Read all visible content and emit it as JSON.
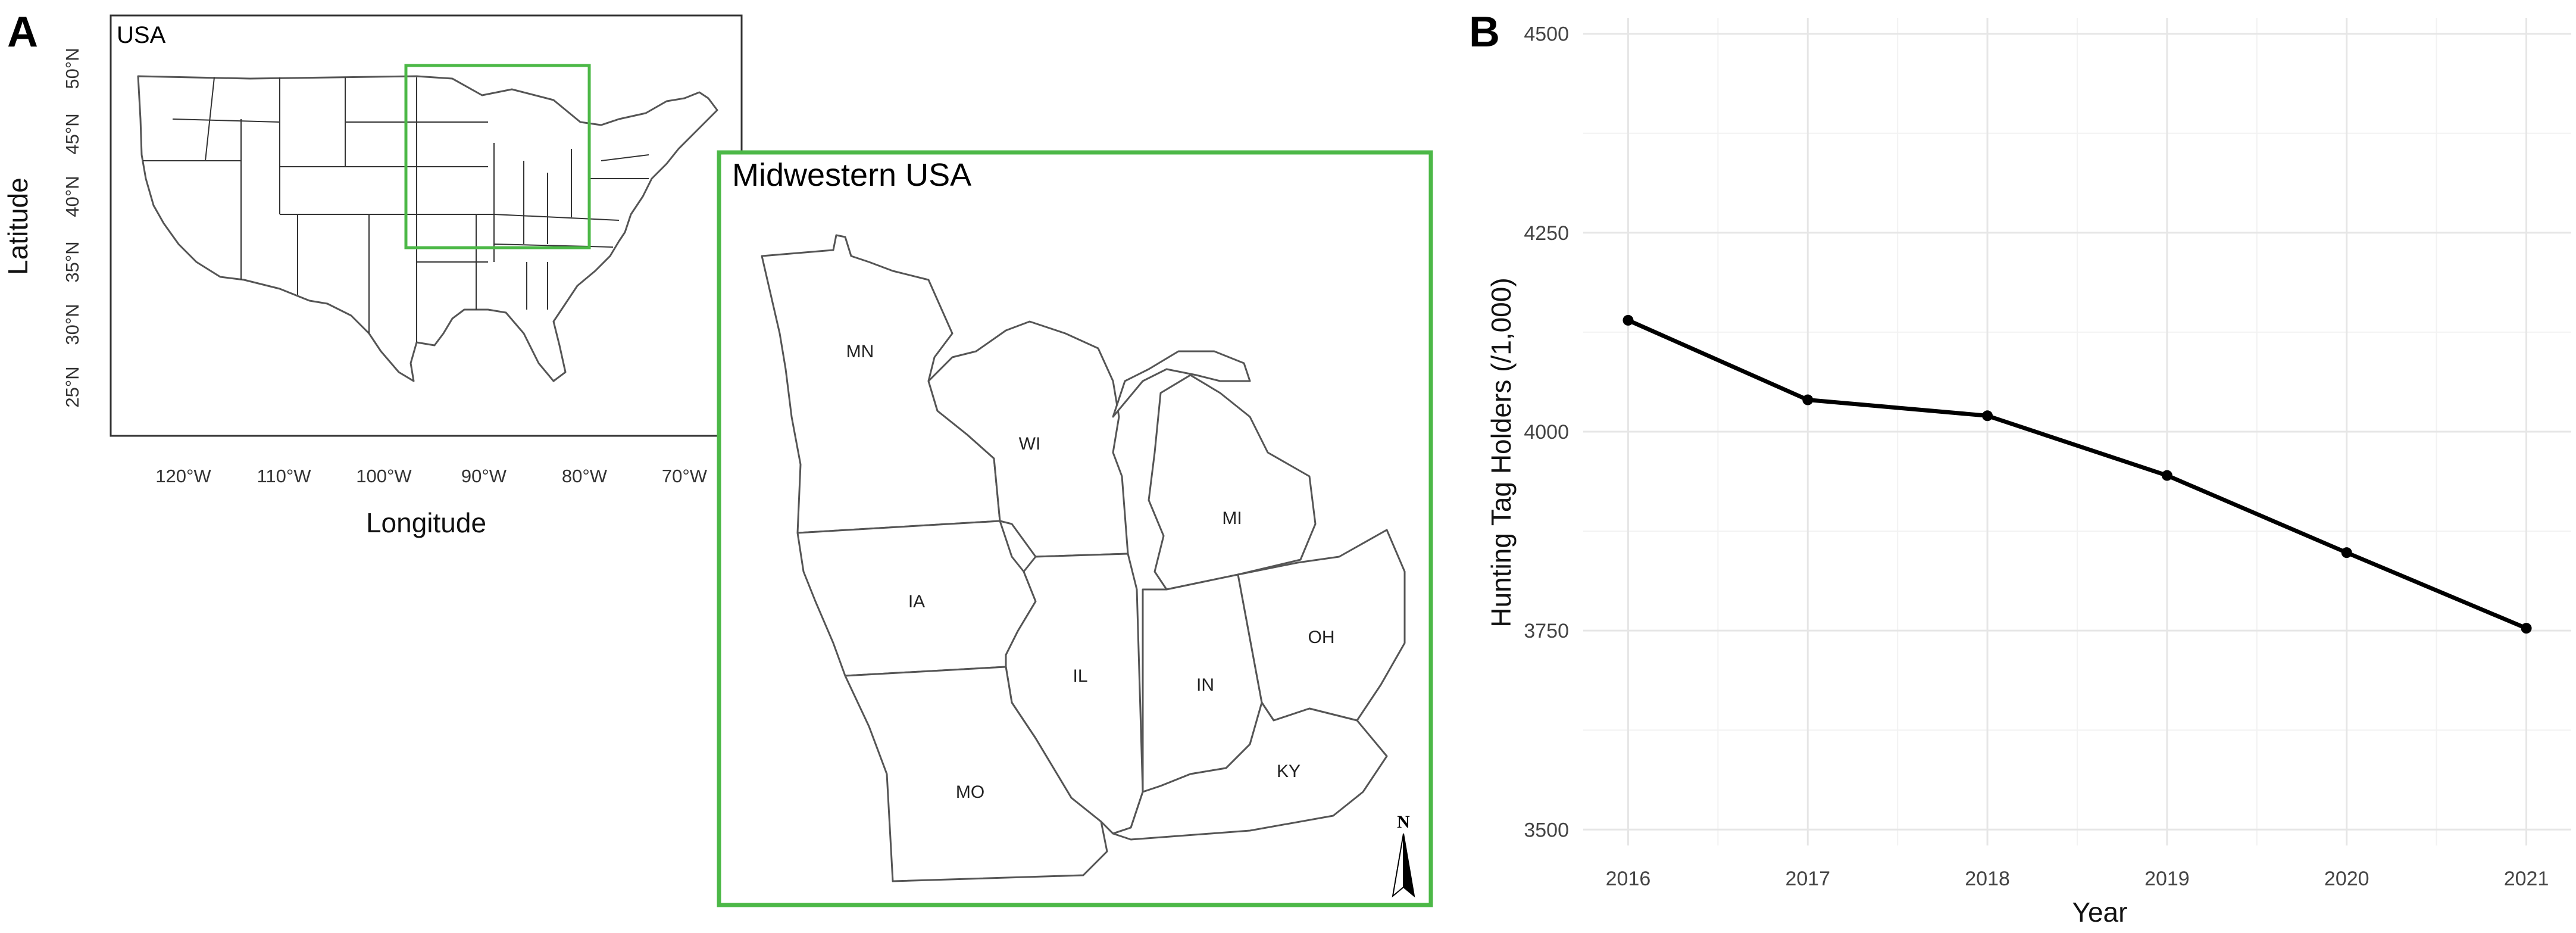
{
  "panels": {
    "a_letter": "A",
    "b_letter": "B"
  },
  "map": {
    "usa_title": "USA",
    "xlabel": "Longitude",
    "ylabel": "Latitude",
    "x_ticks": [
      "120°W",
      "110°W",
      "100°W",
      "90°W",
      "80°W",
      "70°W"
    ],
    "y_ticks": [
      "25°N",
      "30°N",
      "35°N",
      "40°N",
      "45°N",
      "50°N"
    ],
    "highlight_color": "#4cb847",
    "inset_title": "Midwestern USA",
    "north_arrow_label": "N",
    "states": [
      {
        "code": "MN"
      },
      {
        "code": "WI"
      },
      {
        "code": "MI"
      },
      {
        "code": "IA"
      },
      {
        "code": "IL"
      },
      {
        "code": "IN"
      },
      {
        "code": "OH"
      },
      {
        "code": "MO"
      },
      {
        "code": "KY"
      }
    ]
  },
  "chart_data": {
    "type": "line",
    "x": [
      2016,
      2017,
      2018,
      2019,
      2020,
      2021
    ],
    "series": [
      {
        "values": [
          4140,
          4040,
          4020,
          3945,
          3848,
          3753
        ]
      }
    ],
    "xlabel": "Year",
    "ylabel": "Hunting Tag Holders (/1,000)",
    "x_ticks": [
      "2016",
      "2017",
      "2018",
      "2019",
      "2020",
      "2021"
    ],
    "y_ticks": [
      3500,
      3750,
      4000,
      4250,
      4500
    ],
    "ylim": [
      3480,
      4520
    ],
    "xlim": [
      2015.75,
      2021.25
    ],
    "grid": true,
    "line_color": "#000000"
  }
}
